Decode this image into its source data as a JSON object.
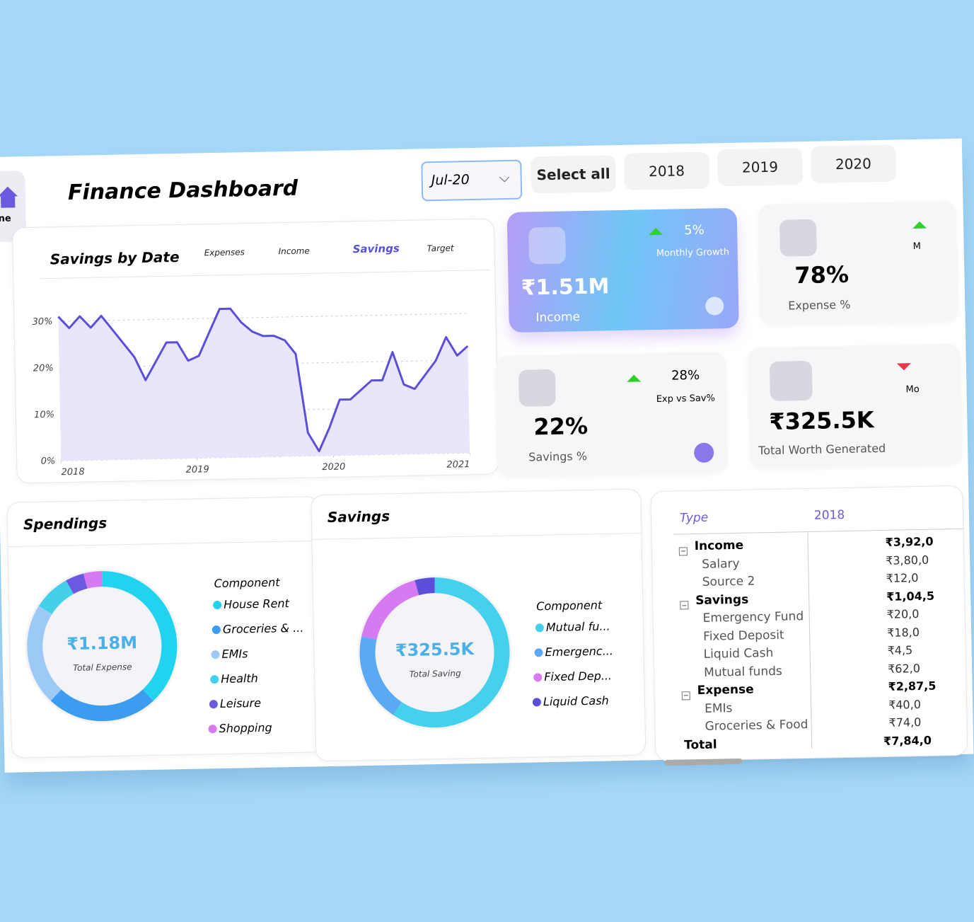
{
  "sidebar": {
    "home": "ne"
  },
  "header": {
    "title": "Finance Dashboard",
    "dropdown": "Jul-20",
    "buttons": [
      "Select all",
      "2018",
      "2019",
      "2020"
    ]
  },
  "savings_chart": {
    "type": "line",
    "title": "Savings by Date",
    "legend": [
      "Expenses",
      "Income",
      "Savings",
      "Target"
    ],
    "active_legend": 2,
    "color": "#5b4fd9",
    "fill": "#e9e6fb",
    "values": [
      31,
      28.5,
      31,
      28.5,
      31,
      28,
      25,
      22,
      17,
      21,
      25,
      25,
      21,
      22,
      27,
      32,
      32,
      29,
      27,
      26,
      26,
      25,
      22,
      5,
      1,
      6,
      12,
      12,
      14,
      16,
      16,
      22,
      15,
      14,
      17,
      20,
      25,
      21,
      23
    ],
    "xlim": [
      2018,
      2021
    ],
    "xticks": [
      2018,
      2019,
      2020,
      2021
    ],
    "ylim": [
      0,
      35
    ],
    "yticks": [
      {
        "value": 0,
        "label": "0%"
      },
      {
        "value": 10,
        "label": "10%"
      },
      {
        "value": 20,
        "label": "20%"
      },
      {
        "value": 30,
        "label": "30%"
      }
    ]
  },
  "kpis": {
    "income": {
      "value": "₹1.51M",
      "label": "Income",
      "growth": "5%",
      "growth_label": "Monthly Growth"
    },
    "expense": {
      "value": "78%",
      "label": "Expense %",
      "growth_label": "M"
    },
    "savings": {
      "value": "22%",
      "label": "Savings %",
      "growth": "28%",
      "growth_label": "Exp vs Sav%"
    },
    "worth": {
      "value": "₹325.5K",
      "label": "Total Worth Generated",
      "growth_label": "Mo"
    }
  },
  "spendings": {
    "type": "pie",
    "title": "Spendings",
    "center_value": "₹1.18M",
    "center_label": "Total Expense",
    "legend_title": "Component",
    "categories": [
      "House Rent",
      "Groceries & ...",
      "EMIs",
      "Health",
      "Leisure",
      "Shopping"
    ],
    "values": [
      38,
      24,
      22,
      8,
      4,
      4
    ],
    "colors": [
      "#22d3f0",
      "#3b9cf0",
      "#9cc9f5",
      "#45d0ea",
      "#6a5ae0",
      "#d57af0"
    ]
  },
  "savings_donut": {
    "type": "pie",
    "title": "Savings",
    "center_value": "₹325.5K",
    "center_label": "Total Saving",
    "legend_title": "Component",
    "categories": [
      "Mutual fu...",
      "Emergenc...",
      "Fixed Dep...",
      "Liquid Cash"
    ],
    "values": [
      62,
      20,
      18,
      4.5
    ],
    "colors": [
      "#45d0ee",
      "#5aaaf3",
      "#d57af0",
      "#5b4fd9"
    ]
  },
  "table": {
    "header": [
      "Type",
      "2018"
    ],
    "rows": [
      {
        "label": "Income",
        "value": "₹3,92,0",
        "group": true
      },
      {
        "label": "Salary",
        "value": "₹3,80,0"
      },
      {
        "label": "Source 2",
        "value": "₹12,0"
      },
      {
        "label": "Savings",
        "value": "₹1,04,5",
        "group": true
      },
      {
        "label": "Emergency Fund",
        "value": "₹20,0"
      },
      {
        "label": "Fixed Deposit",
        "value": "₹18,0"
      },
      {
        "label": "Liquid Cash",
        "value": "₹4,5"
      },
      {
        "label": "Mutual funds",
        "value": "₹62,0"
      },
      {
        "label": "Expense",
        "value": "₹2,87,5",
        "group": true
      },
      {
        "label": "EMIs",
        "value": "₹40,0"
      },
      {
        "label": "Groceries & Food",
        "value": "₹74,0"
      }
    ],
    "total": {
      "label": "Total",
      "value": "₹7,84,0"
    }
  }
}
